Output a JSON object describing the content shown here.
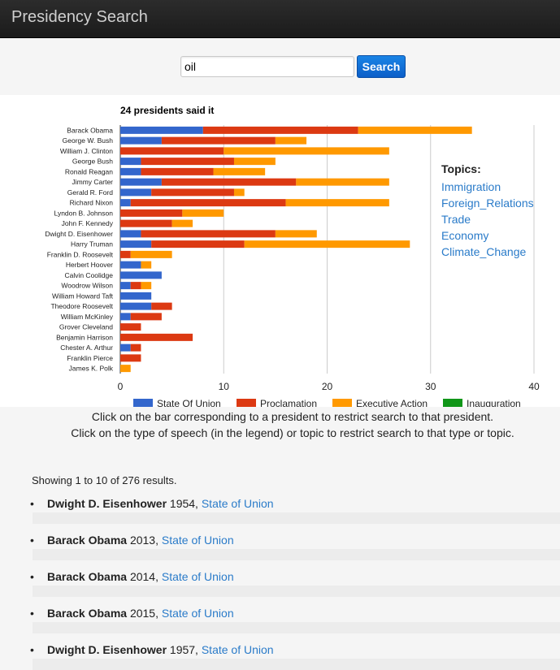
{
  "app": {
    "title": "Presidency Search"
  },
  "search": {
    "value": "oil",
    "button_label": "Search"
  },
  "chart_data": {
    "type": "bar",
    "orientation": "horizontal",
    "stacked": true,
    "title": "24 presidents said it",
    "categories": [
      "Barack Obama",
      "George W. Bush",
      "William J. Clinton",
      "George Bush",
      "Ronald Reagan",
      "Jimmy Carter",
      "Gerald R. Ford",
      "Richard Nixon",
      "Lyndon B. Johnson",
      "John F. Kennedy",
      "Dwight D. Eisenhower",
      "Harry Truman",
      "Franklin D. Roosevelt",
      "Herbert Hoover",
      "Calvin Coolidge",
      "Woodrow Wilson",
      "William Howard Taft",
      "Theodore Roosevelt",
      "William McKinley",
      "Grover Cleveland",
      "Benjamin Harrison",
      "Chester A. Arthur",
      "Franklin Pierce",
      "James K. Polk"
    ],
    "series": [
      {
        "name": "State Of Union",
        "color": "#3366cc",
        "values": [
          8,
          4,
          0,
          2,
          2,
          4,
          3,
          1,
          0,
          0,
          2,
          3,
          0,
          2,
          4,
          1,
          3,
          3,
          1,
          0,
          0,
          1,
          0,
          0
        ]
      },
      {
        "name": "Proclamation",
        "color": "#dc3912",
        "values": [
          15,
          11,
          10,
          9,
          7,
          13,
          8,
          15,
          6,
          5,
          13,
          9,
          1,
          0,
          0,
          1,
          0,
          2,
          3,
          2,
          7,
          1,
          2,
          0
        ]
      },
      {
        "name": "Executive Action",
        "color": "#ff9900",
        "values": [
          11,
          3,
          16,
          4,
          5,
          9,
          1,
          10,
          4,
          2,
          4,
          16,
          4,
          1,
          0,
          1,
          0,
          0,
          0,
          0,
          0,
          0,
          0,
          1
        ]
      },
      {
        "name": "Inauguration",
        "color": "#109618",
        "values": [
          0,
          0,
          0,
          0,
          0,
          0,
          0,
          0,
          0,
          0,
          0,
          0,
          0,
          0,
          0,
          0,
          0,
          0,
          0,
          0,
          0,
          0,
          0,
          0
        ]
      }
    ],
    "xlim": [
      0,
      40
    ],
    "xticks": [
      "0",
      "10",
      "20",
      "30",
      "40"
    ],
    "grid": true,
    "legend_position": "bottom"
  },
  "topics": {
    "title": "Topics:",
    "items": [
      "Immigration",
      "Foreign_Relations",
      "Trade",
      "Economy",
      "Climate_Change"
    ]
  },
  "instructions": {
    "line1": "Click on the bar corresponding to a president to restrict search to that president.",
    "line2": "Click on the type of speech (in the legend) or topic to restrict search to that type or topic."
  },
  "results": {
    "summary": "Showing 1 to 10 of 276 results.",
    "items": [
      {
        "president": "Dwight D. Eisenhower",
        "year": "1954,",
        "type": "State of Union"
      },
      {
        "president": "Barack Obama",
        "year": "2013,",
        "type": "State of Union"
      },
      {
        "president": "Barack Obama",
        "year": "2014,",
        "type": "State of Union"
      },
      {
        "president": "Barack Obama",
        "year": "2015,",
        "type": "State of Union"
      },
      {
        "president": "Dwight D. Eisenhower",
        "year": "1957,",
        "type": "State of Union"
      }
    ]
  }
}
